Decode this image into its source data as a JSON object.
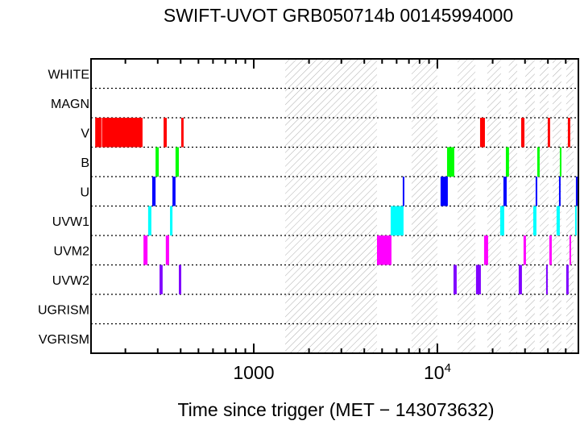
{
  "chart_data": {
    "type": "timeline",
    "title": "SWIFT-UVOT GRB050714b 00145994000",
    "xlabel": "Time since trigger (MET − 143073632)",
    "ylabel": "",
    "xscale": "log",
    "xlim": [
      130,
      58600
    ],
    "x_ticks": [
      {
        "value": 1000,
        "label": "1000"
      },
      {
        "value": 10000,
        "label": "10",
        "sup": "4"
      }
    ],
    "rows": [
      "WHITE",
      "MAGN",
      "V",
      "B",
      "U",
      "UVW1",
      "UVM2",
      "UVW2",
      "UGRISM",
      "VGRISM"
    ],
    "colors": {
      "V": "#ff0000",
      "B": "#00ff00",
      "U": "#0000ff",
      "UVW1": "#00ffff",
      "UVM2": "#ff00ff",
      "UVW2": "#8000ff"
    },
    "hatch_color": "#b0b0b0",
    "hatched_intervals": [
      [
        1484,
        4690
      ],
      [
        7240,
        10000
      ],
      [
        12900,
        16100
      ],
      [
        18700,
        22200
      ],
      [
        24500,
        27200
      ],
      [
        30100,
        33900
      ],
      [
        36100,
        40300
      ],
      [
        42400,
        47300
      ],
      [
        50300,
        55100
      ]
    ],
    "exposures": {
      "V": [
        [
          137,
          148
        ],
        [
          149,
          248
        ],
        [
          323,
          336
        ],
        [
          403,
          415
        ],
        [
          17080,
          18150
        ],
        [
          28600,
          29800
        ],
        [
          39900,
          41100
        ],
        [
          51340,
          52900
        ]
      ],
      "B": [
        [
          292,
          304
        ],
        [
          375,
          391
        ],
        [
          11290,
          12360
        ],
        [
          23600,
          24550
        ],
        [
          34990,
          36060
        ],
        [
          46430,
          47360
        ]
      ],
      "U": [
        [
          280,
          292
        ],
        [
          361,
          375
        ],
        [
          6477,
          6610
        ],
        [
          10410,
          11400
        ],
        [
          22890,
          23840
        ],
        [
          34280,
          34990
        ],
        [
          45950,
          46890
        ],
        [
          56800,
          57950
        ]
      ],
      "UVW1": [
        [
          266,
          277
        ],
        [
          350,
          361
        ],
        [
          5567,
          6543
        ],
        [
          21980,
          23120
        ],
        [
          33260,
          34630
        ],
        [
          44570,
          46430
        ],
        [
          56230,
          57380
        ]
      ],
      "UVM2": [
        [
          251,
          264
        ],
        [
          332,
          346
        ],
        [
          4690,
          5623
        ],
        [
          17960,
          18890
        ],
        [
          29460,
          30370
        ],
        [
          40700,
          41970
        ],
        [
          52390,
          53470
        ]
      ],
      "UVW2": [
        [
          307,
          319
        ],
        [
          391,
          403
        ],
        [
          12240,
          12740
        ],
        [
          16230,
          17250
        ],
        [
          27730,
          28870
        ],
        [
          39090,
          39900
        ],
        [
          50310,
          51860
        ]
      ]
    }
  }
}
